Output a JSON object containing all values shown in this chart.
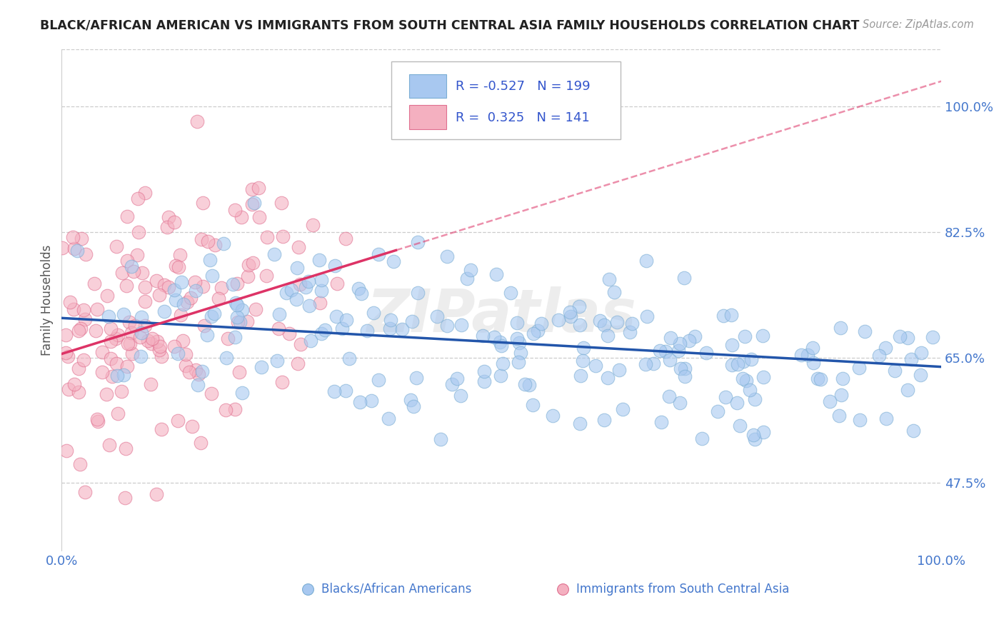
{
  "title": "BLACK/AFRICAN AMERICAN VS IMMIGRANTS FROM SOUTH CENTRAL ASIA FAMILY HOUSEHOLDS CORRELATION CHART",
  "source": "Source: ZipAtlas.com",
  "ylabel": "Family Households",
  "yticks": [
    47.5,
    65.0,
    82.5,
    100.0
  ],
  "ytick_labels": [
    "47.5%",
    "65.0%",
    "82.5%",
    "100.0%"
  ],
  "xlim": [
    0.0,
    100.0
  ],
  "ylim": [
    38.0,
    108.0
  ],
  "plot_ylim_top": 100.0,
  "plot_ylim_bottom": 47.5,
  "series": [
    {
      "label": "Blacks/African Americans",
      "R": -0.527,
      "N": 199,
      "color_scatter": "#a8c8f0",
      "color_scatter_edge": "#7baed4",
      "color_line": "#2255aa",
      "x_max": 100.0,
      "slope": -0.068,
      "intercept": 70.5
    },
    {
      "label": "Immigrants from South Central Asia",
      "R": 0.325,
      "N": 141,
      "color_scatter": "#f4b0c0",
      "color_scatter_edge": "#e07090",
      "color_line": "#dd3366",
      "x_max": 35.0,
      "slope": 0.38,
      "intercept": 65.5
    }
  ],
  "legend_box_colors": [
    "#a8c8f0",
    "#f4b0c0"
  ],
  "legend_text_color": "#3355cc",
  "watermark": "ZIPatlas",
  "background_color": "#ffffff",
  "grid_color": "#cccccc",
  "title_color": "#222222",
  "axis_label_color": "#4477cc"
}
